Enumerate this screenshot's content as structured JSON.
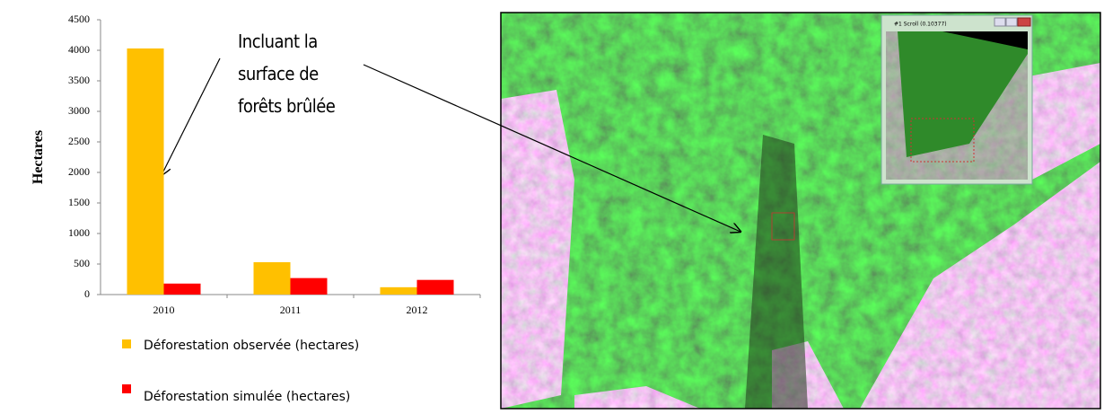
{
  "chart_data": {
    "type": "bar",
    "y_label": "Hectares",
    "categories": [
      "2010",
      "2011",
      "2012"
    ],
    "series": [
      {
        "name": "Déforestation observée (hectares)",
        "color": "#ffc000",
        "values": [
          4030,
          530,
          120
        ]
      },
      {
        "name": "Déforestation simulée (hectares)",
        "color": "#ff0000",
        "values": [
          180,
          270,
          240
        ]
      }
    ],
    "ylim": [
      0,
      4500
    ],
    "yticks": [
      0,
      500,
      1000,
      1500,
      2000,
      2500,
      3000,
      3500,
      4000,
      4500
    ],
    "annotation": [
      "Incluant la",
      "surface de",
      "forêts brûlée"
    ],
    "inset_window": {
      "title": "#1 Scroll (0.10377)"
    }
  }
}
